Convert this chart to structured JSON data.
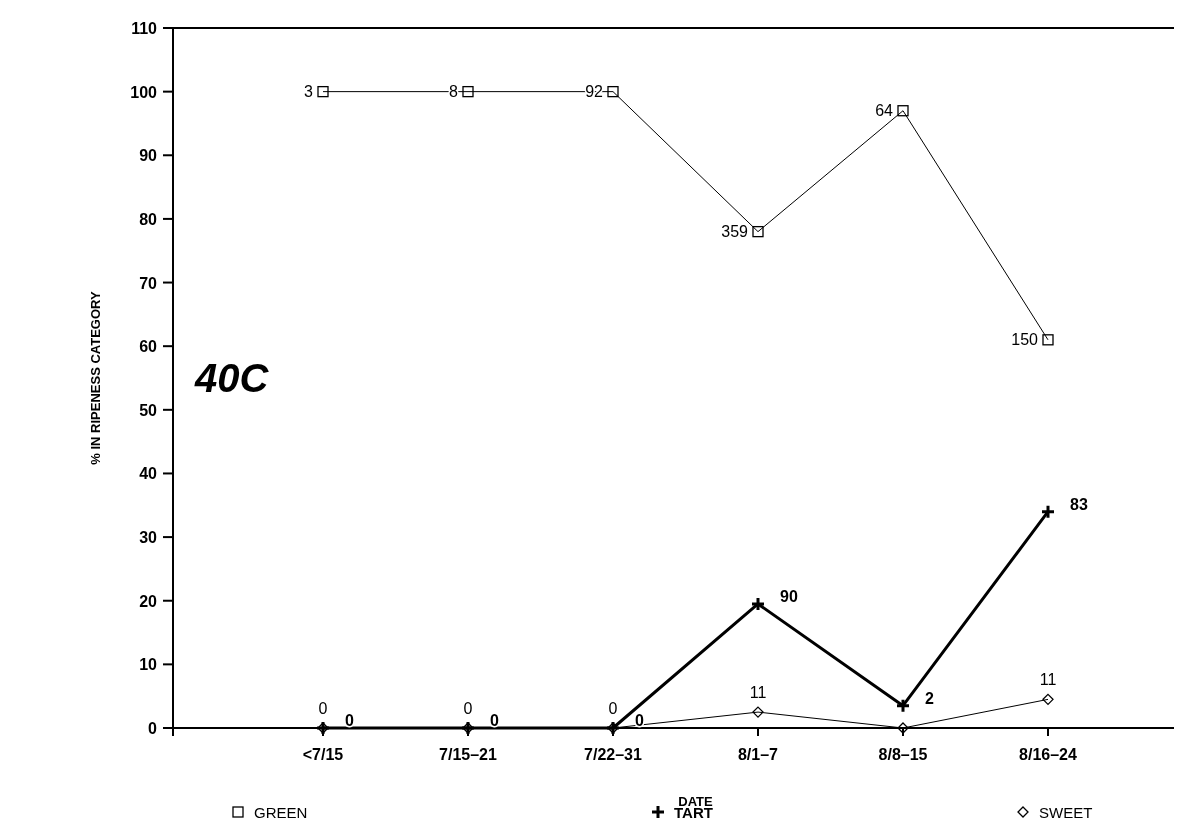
{
  "chart_data": {
    "type": "line",
    "xlabel": "DATE",
    "ylabel": "% IN RIPENESS CATEGORY",
    "annotations": [
      "40C",
      {
        "text": "3",
        "x": "<7/15",
        "y": 100
      },
      {
        "text": "8",
        "x": "7/15–21",
        "y": 100
      },
      {
        "text": "92",
        "x": "7/22–31",
        "y": 100
      },
      {
        "text": "359",
        "x": "8/1–7",
        "y": 78
      },
      {
        "text": "64",
        "x": "8/8–15",
        "y": 97
      },
      {
        "text": "150",
        "x": "8/16–24",
        "y": 61
      },
      {
        "text": "0",
        "x": "<7/15",
        "y": 0
      },
      {
        "text": "0",
        "x": "7/15–21",
        "y": 0
      },
      {
        "text": "0",
        "x": "7/22–31",
        "y": 0
      },
      {
        "text": "90",
        "x": "8/1–7",
        "y": 19.5
      },
      {
        "text": "2",
        "x": "8/8–15",
        "y": 3.5
      },
      {
        "text": "83",
        "x": "8/16–24",
        "y": 34
      },
      {
        "text": "0",
        "x": "<7/15",
        "y": 0
      },
      {
        "text": "0",
        "x": "7/15–21",
        "y": 0
      },
      {
        "text": "0",
        "x": "7/22–31",
        "y": 0
      },
      {
        "text": "11",
        "x": "8/1–7",
        "y": 2.5
      },
      {
        "text": "11",
        "x": "8/16–24",
        "y": 4.5
      }
    ],
    "categories": [
      "<7/15",
      "7/15–21",
      "7/22–31",
      "8/1–7",
      "8/8–15",
      "8/16–24"
    ],
    "ylim": [
      0,
      110
    ],
    "yticks": [
      0,
      10,
      20,
      30,
      40,
      50,
      60,
      70,
      80,
      90,
      100,
      110
    ],
    "legend": "bottom",
    "grid": false,
    "series": [
      {
        "name": "GREEN",
        "color": "#000000",
        "marker": "square",
        "values": [
          100,
          100,
          100,
          78,
          97,
          61
        ]
      },
      {
        "name": "TART",
        "color": "#000000",
        "marker": "cross",
        "values": [
          0,
          0,
          0,
          19.5,
          3.5,
          34
        ]
      },
      {
        "name": "SWEET",
        "color": "#000000",
        "marker": "diamond",
        "values": [
          0,
          0,
          0,
          2.5,
          0,
          4.5
        ]
      }
    ]
  }
}
